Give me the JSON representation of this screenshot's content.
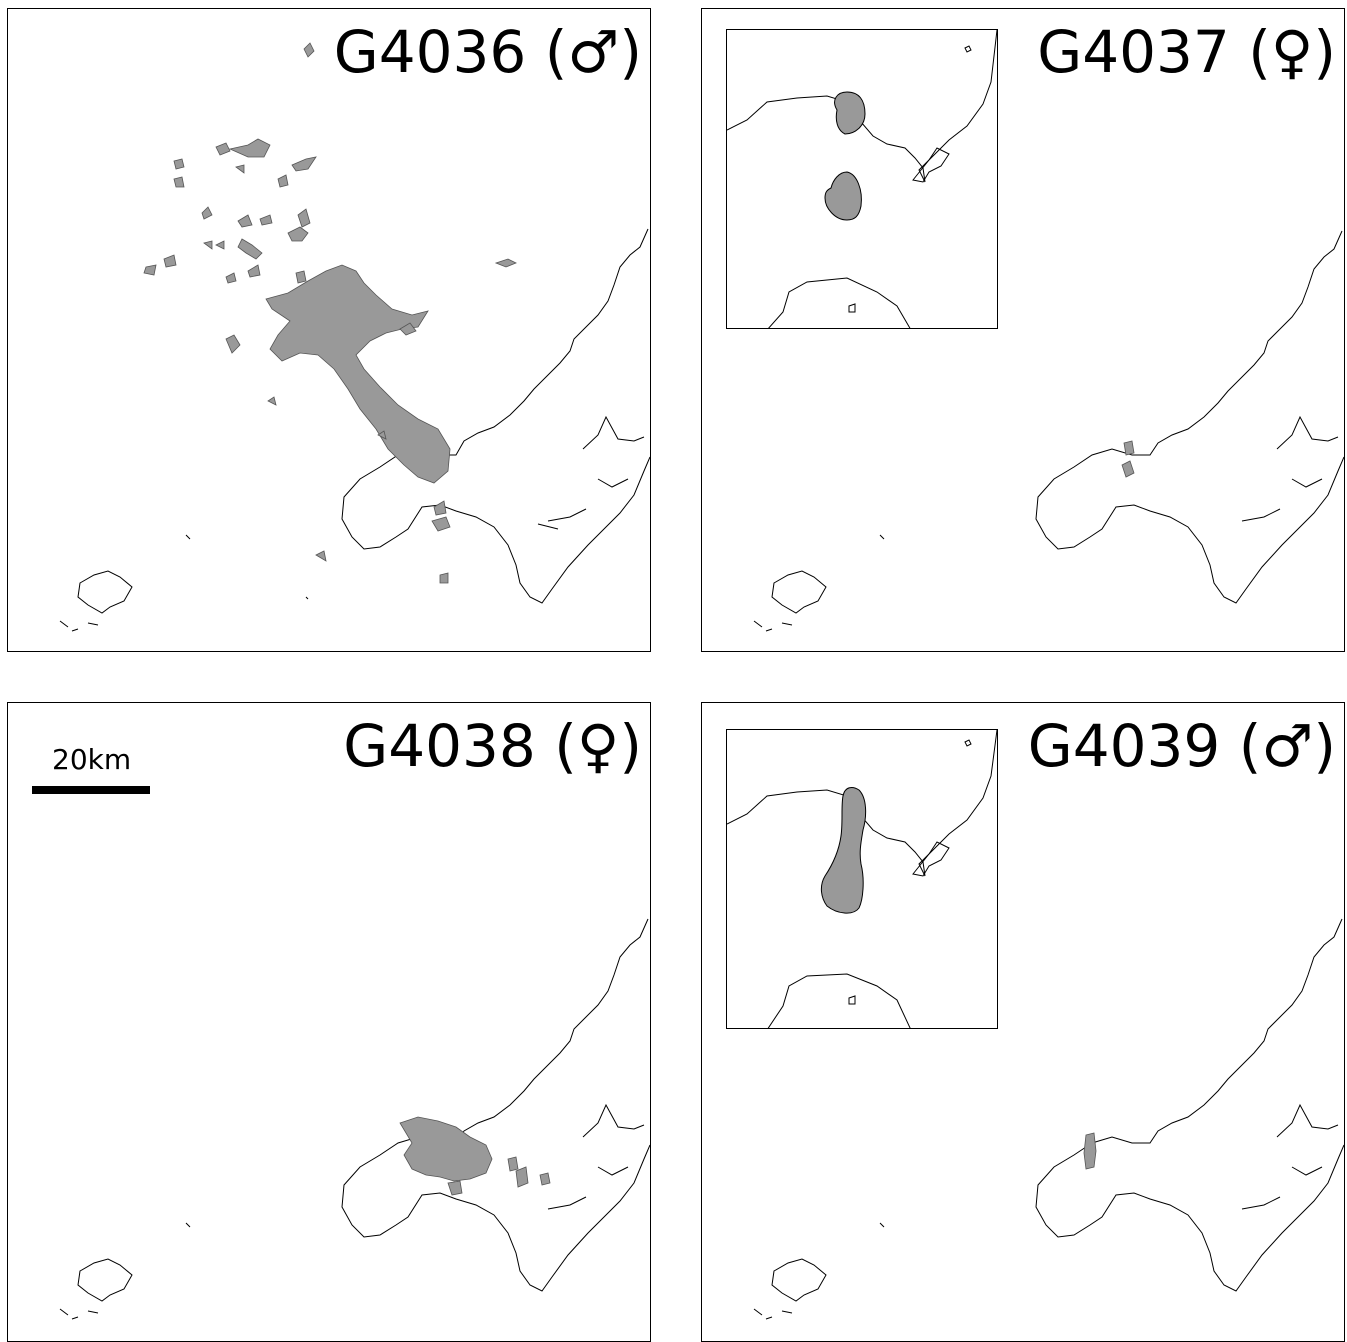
{
  "panels": [
    {
      "id": "G4036",
      "label": "G4036 (♂)",
      "sex": "male",
      "has_inset": false
    },
    {
      "id": "G4037",
      "label": "G4037 (♀)",
      "sex": "female",
      "has_inset": true
    },
    {
      "id": "G4038",
      "label": "G4038 (♀)",
      "sex": "female",
      "has_inset": false
    },
    {
      "id": "G4039",
      "label": "G4039 (♂)",
      "sex": "male",
      "has_inset": true
    }
  ],
  "scale_bar": {
    "label": "20km"
  },
  "colors": {
    "range_fill": "#999999",
    "coast_stroke": "#000000",
    "background": "#ffffff"
  }
}
